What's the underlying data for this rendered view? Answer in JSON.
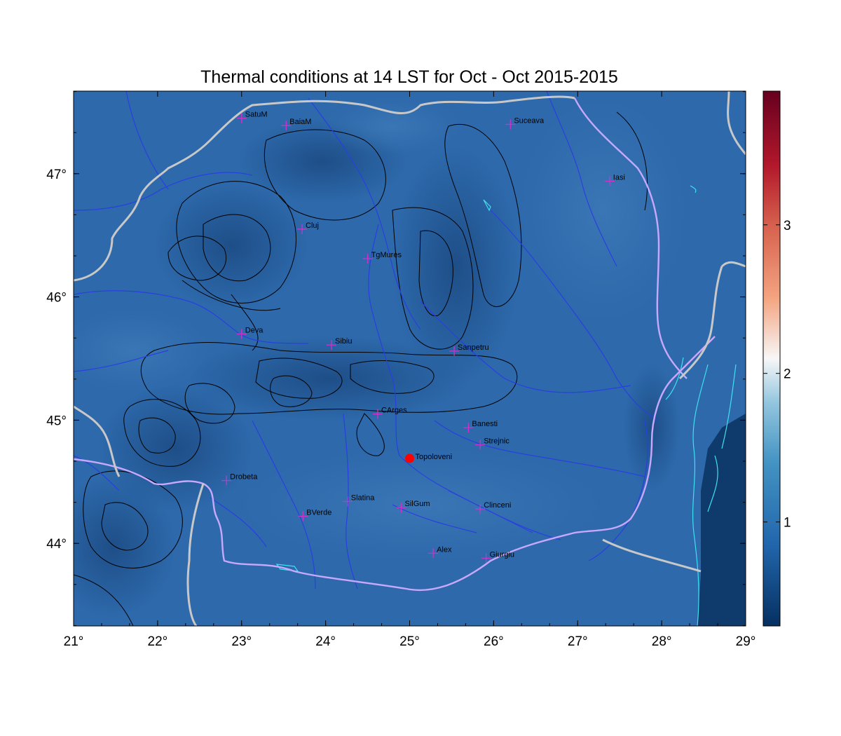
{
  "title": "Thermal conditions at 14 LST for Oct - Oct  2015-2015",
  "map": {
    "lon_range": [
      21,
      29
    ],
    "lat_range": [
      43.33,
      47.67
    ],
    "lon_ticks": [
      {
        "value": 21,
        "label": "21°"
      },
      {
        "value": 22,
        "label": "22°"
      },
      {
        "value": 23,
        "label": "23°"
      },
      {
        "value": 24,
        "label": "24°"
      },
      {
        "value": 25,
        "label": "25°"
      },
      {
        "value": 26,
        "label": "26°"
      },
      {
        "value": 27,
        "label": "27°"
      },
      {
        "value": 28,
        "label": "28°"
      },
      {
        "value": 29,
        "label": "29°"
      }
    ],
    "lat_ticks": [
      {
        "value": 44,
        "label": "44°"
      },
      {
        "value": 45,
        "label": "45°"
      },
      {
        "value": 46,
        "label": "46°"
      },
      {
        "value": 47,
        "label": "47°"
      }
    ],
    "field_color": "#2d69ab",
    "cities": [
      {
        "name": "SatuM",
        "lon": 23.0,
        "lat": 47.45
      },
      {
        "name": "BaiaM",
        "lon": 23.53,
        "lat": 47.39
      },
      {
        "name": "Suceava",
        "lon": 26.2,
        "lat": 47.4
      },
      {
        "name": "Iasi",
        "lon": 27.38,
        "lat": 46.94
      },
      {
        "name": "Cluj",
        "lon": 23.72,
        "lat": 46.55
      },
      {
        "name": "TgMures",
        "lon": 24.5,
        "lat": 46.31
      },
      {
        "name": "Deva",
        "lon": 23.0,
        "lat": 45.7
      },
      {
        "name": "Sibiu",
        "lon": 24.07,
        "lat": 45.61
      },
      {
        "name": "Sanpetru",
        "lon": 25.53,
        "lat": 45.56
      },
      {
        "name": "CArges",
        "lon": 24.62,
        "lat": 45.05
      },
      {
        "name": "Banesti",
        "lon": 25.7,
        "lat": 44.94
      },
      {
        "name": "Strejnic",
        "lon": 25.84,
        "lat": 44.8
      },
      {
        "name": "Drobeta",
        "lon": 22.82,
        "lat": 44.51
      },
      {
        "name": "Slatina",
        "lon": 24.26,
        "lat": 44.34
      },
      {
        "name": "SilGum",
        "lon": 24.9,
        "lat": 44.29
      },
      {
        "name": "Clinceni",
        "lon": 25.84,
        "lat": 44.28
      },
      {
        "name": "BVerde",
        "lon": 23.73,
        "lat": 44.22
      },
      {
        "name": "Alex",
        "lon": 25.28,
        "lat": 43.92
      },
      {
        "name": "Giurgiu",
        "lon": 25.91,
        "lat": 43.88
      }
    ],
    "highlight_site": {
      "name": "Topoloveni",
      "lon": 25.0,
      "lat": 44.69,
      "color": "#ff0000"
    },
    "station_marker_color": "#cc33cc"
  },
  "colorbar": {
    "ticks": [
      {
        "value": 1,
        "label": "1"
      },
      {
        "value": 2,
        "label": "2"
      },
      {
        "value": 3,
        "label": "3"
      }
    ],
    "range": [
      0.3,
      3.9
    ],
    "stops": [
      {
        "value": 0.3,
        "color": "#053061"
      },
      {
        "value": 0.85,
        "color": "#2166ac"
      },
      {
        "value": 1.4,
        "color": "#4393c3"
      },
      {
        "value": 1.8,
        "color": "#92c5de"
      },
      {
        "value": 2.1,
        "color": "#f7f7f7"
      },
      {
        "value": 2.5,
        "color": "#f4a582"
      },
      {
        "value": 3.0,
        "color": "#d6604d"
      },
      {
        "value": 3.4,
        "color": "#b2182b"
      },
      {
        "value": 3.9,
        "color": "#67001f"
      }
    ]
  }
}
